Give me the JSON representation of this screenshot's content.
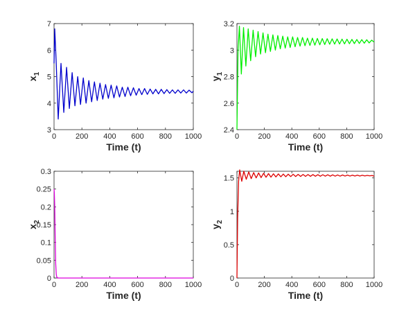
{
  "chart_data": [
    {
      "id": "x1",
      "type": "line",
      "xlabel": "Time (t)",
      "ylabel": "x",
      "ylabel_sub": "1",
      "xlim": [
        0,
        1000
      ],
      "ylim": [
        3,
        7
      ],
      "xticks": [
        0,
        200,
        400,
        600,
        800,
        1000
      ],
      "yticks": [
        3,
        4,
        5,
        6,
        7
      ],
      "color": "#0000cc",
      "series": [
        {
          "x": [
            0,
            5,
            15,
            30,
            50,
            70,
            90,
            110,
            130,
            150,
            170,
            190,
            210,
            230,
            250,
            270,
            290,
            310,
            330,
            350,
            370,
            390,
            410,
            430,
            450,
            470,
            490,
            510,
            530,
            550,
            570,
            590,
            610,
            630,
            650,
            670,
            690,
            710,
            730,
            750,
            770,
            790,
            810,
            830,
            850,
            870,
            890,
            910,
            930,
            950,
            970,
            990,
            1000
          ],
          "y": [
            5.5,
            6.8,
            5.6,
            3.4,
            5.5,
            3.65,
            5.35,
            3.8,
            5.15,
            3.9,
            5.0,
            3.95,
            4.95,
            4.0,
            4.85,
            4.05,
            4.8,
            4.1,
            4.75,
            4.15,
            4.7,
            4.18,
            4.68,
            4.2,
            4.65,
            4.23,
            4.6,
            4.25,
            4.6,
            4.28,
            4.58,
            4.3,
            4.55,
            4.32,
            4.55,
            4.33,
            4.53,
            4.35,
            4.52,
            4.35,
            4.52,
            4.36,
            4.51,
            4.37,
            4.5,
            4.37,
            4.5,
            4.38,
            4.5,
            4.38,
            4.49,
            4.39,
            4.45
          ]
        }
      ]
    },
    {
      "id": "y1",
      "type": "line",
      "xlabel": "Time (t)",
      "ylabel": "y",
      "ylabel_sub": "1",
      "xlim": [
        0,
        1000
      ],
      "ylim": [
        2.4,
        3.2
      ],
      "xticks": [
        0,
        200,
        400,
        600,
        800,
        1000
      ],
      "yticks": [
        2.4,
        2.6,
        2.8,
        3,
        3.2
      ],
      "color": "#00ee00",
      "series": [
        {
          "x": [
            0,
            8,
            18,
            32,
            48,
            65,
            82,
            100,
            118,
            136,
            154,
            172,
            190,
            208,
            226,
            244,
            262,
            280,
            298,
            316,
            334,
            352,
            370,
            388,
            406,
            424,
            442,
            460,
            478,
            496,
            514,
            532,
            550,
            568,
            586,
            604,
            622,
            640,
            658,
            676,
            694,
            712,
            730,
            748,
            766,
            784,
            802,
            820,
            838,
            856,
            874,
            892,
            910,
            928,
            946,
            964,
            982,
            1000
          ],
          "y": [
            2.4,
            3.0,
            3.18,
            2.82,
            3.17,
            2.88,
            3.16,
            2.92,
            3.15,
            2.95,
            3.14,
            2.97,
            3.13,
            2.98,
            3.12,
            2.99,
            3.115,
            3.0,
            3.11,
            3.01,
            3.105,
            3.015,
            3.1,
            3.02,
            3.1,
            3.025,
            3.095,
            3.03,
            3.095,
            3.033,
            3.09,
            3.035,
            3.09,
            3.037,
            3.088,
            3.04,
            3.087,
            3.042,
            3.086,
            3.044,
            3.085,
            3.045,
            3.084,
            3.046,
            3.083,
            3.047,
            3.082,
            3.048,
            3.081,
            3.049,
            3.08,
            3.05,
            3.079,
            3.052,
            3.078,
            3.054,
            3.075,
            3.06
          ]
        }
      ]
    },
    {
      "id": "x2",
      "type": "line",
      "xlabel": "Time (t)",
      "ylabel": "x",
      "ylabel_sub": "2",
      "xlim": [
        0,
        1000
      ],
      "ylim": [
        0,
        0.3
      ],
      "xticks": [
        0,
        200,
        400,
        600,
        800,
        1000
      ],
      "yticks": [
        0,
        0.05,
        0.1,
        0.15,
        0.2,
        0.25,
        0.3
      ],
      "color": "#dd00dd",
      "series": [
        {
          "x": [
            0,
            2,
            5,
            8,
            12,
            16,
            20,
            30,
            100,
            300,
            600,
            1000
          ],
          "y": [
            0.25,
            0.24,
            0.2,
            0.12,
            0.04,
            0.01,
            0.002,
            0.0,
            0.0,
            0.0,
            0.0,
            0.0
          ]
        }
      ]
    },
    {
      "id": "y2",
      "type": "line",
      "xlabel": "Time (t)",
      "ylabel": "y",
      "ylabel_sub": "2",
      "xlim": [
        0,
        1000
      ],
      "ylim": [
        0,
        1.6
      ],
      "xticks": [
        0,
        200,
        400,
        600,
        800,
        1000
      ],
      "yticks": [
        0,
        0.5,
        1,
        1.5
      ],
      "color": "#dd0000",
      "series": [
        {
          "x": [
            0,
            5,
            12,
            20,
            35,
            50,
            68,
            86,
            104,
            122,
            140,
            158,
            176,
            194,
            212,
            230,
            248,
            266,
            284,
            302,
            320,
            338,
            356,
            374,
            392,
            410,
            428,
            446,
            464,
            482,
            500,
            518,
            536,
            554,
            572,
            590,
            608,
            626,
            644,
            662,
            680,
            698,
            716,
            734,
            752,
            770,
            788,
            806,
            824,
            842,
            860,
            878,
            896,
            914,
            932,
            950,
            968,
            986,
            1000
          ],
          "y": [
            0.0,
            0.9,
            1.45,
            1.62,
            1.45,
            1.6,
            1.48,
            1.59,
            1.49,
            1.58,
            1.5,
            1.575,
            1.505,
            1.57,
            1.51,
            1.565,
            1.512,
            1.562,
            1.515,
            1.56,
            1.517,
            1.558,
            1.518,
            1.556,
            1.52,
            1.555,
            1.521,
            1.553,
            1.522,
            1.552,
            1.523,
            1.551,
            1.524,
            1.55,
            1.525,
            1.549,
            1.525,
            1.548,
            1.526,
            1.547,
            1.526,
            1.546,
            1.527,
            1.545,
            1.527,
            1.544,
            1.528,
            1.543,
            1.528,
            1.542,
            1.529,
            1.541,
            1.529,
            1.54,
            1.53,
            1.538,
            1.531,
            1.536,
            1.525
          ]
        }
      ]
    }
  ]
}
